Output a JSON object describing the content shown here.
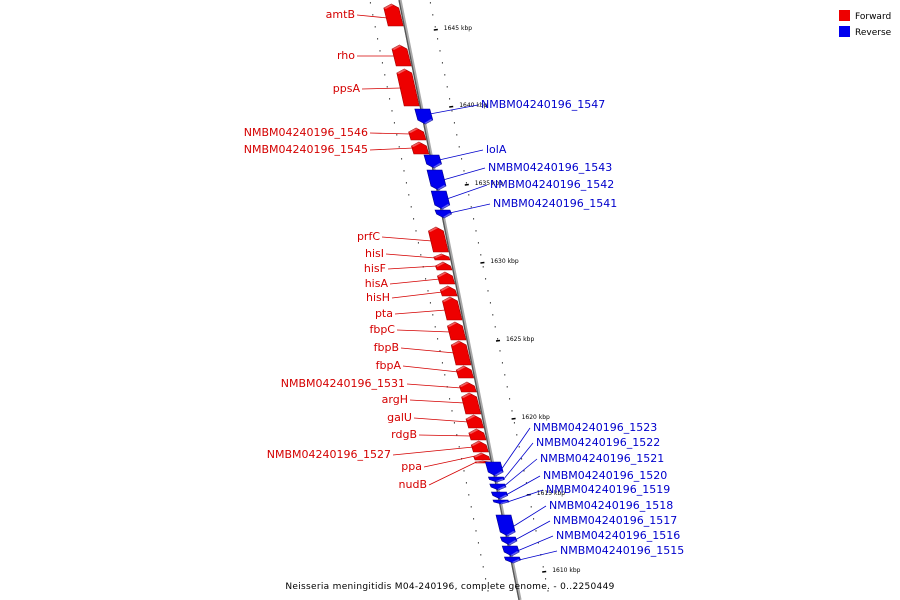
{
  "legend": {
    "forward": {
      "label": "Forward",
      "color": "#ee0000"
    },
    "reverse": {
      "label": "Reverse",
      "color": "#0000ee"
    }
  },
  "caption": "Neisseria meningitidis M04-240196, complete genome. - 0..2250449",
  "kbp_marks": [
    "1645 kbp",
    "1640 kbp",
    "1635 kbp",
    "1630 kbp",
    "1625 kbp",
    "1620 kbp",
    "1615 kbp",
    "1610 kbp"
  ],
  "forward_genes": [
    "amtB",
    "rho",
    "ppsA",
    "NMBM04240196_1546",
    "NMBM04240196_1545",
    "prfC",
    "hisI",
    "hisF",
    "hisA",
    "hisH",
    "pta",
    "fbpC",
    "fbpB",
    "fbpA",
    "NMBM04240196_1531",
    "argH",
    "galU",
    "rdgB",
    "NMBM04240196_1527",
    "ppa",
    "nudB"
  ],
  "reverse_genes": [
    "NMBM04240196_1547",
    "lolA",
    "NMBM04240196_1543",
    "NMBM04240196_1542",
    "NMBM04240196_1541",
    "NMBM04240196_1523",
    "NMBM04240196_1522",
    "NMBM04240196_1521",
    "NMBM04240196_1520",
    "NMBM04240196_1519",
    "NMBM04240196_1518",
    "NMBM04240196_1517",
    "NMBM04240196_1516",
    "NMBM04240196_1515"
  ]
}
